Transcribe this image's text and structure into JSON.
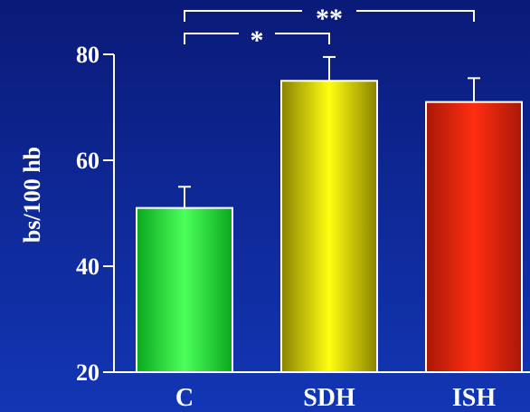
{
  "chart_data": {
    "type": "bar",
    "categories": [
      "C",
      "SDH",
      "ISH"
    ],
    "values": [
      51,
      75,
      71
    ],
    "errors": [
      4,
      4.5,
      4.5
    ],
    "ylabel": "bs/100 hb",
    "ylim": [
      20,
      80
    ],
    "yticks": [
      20,
      40,
      60,
      80
    ],
    "grid": false,
    "bar_colors": [
      "#22e63a",
      "#f0e800",
      "#f2280e"
    ],
    "significance": [
      {
        "from": "C",
        "to": "SDH",
        "label": "*"
      },
      {
        "from": "C",
        "to": "ISH",
        "label": "**"
      }
    ]
  }
}
